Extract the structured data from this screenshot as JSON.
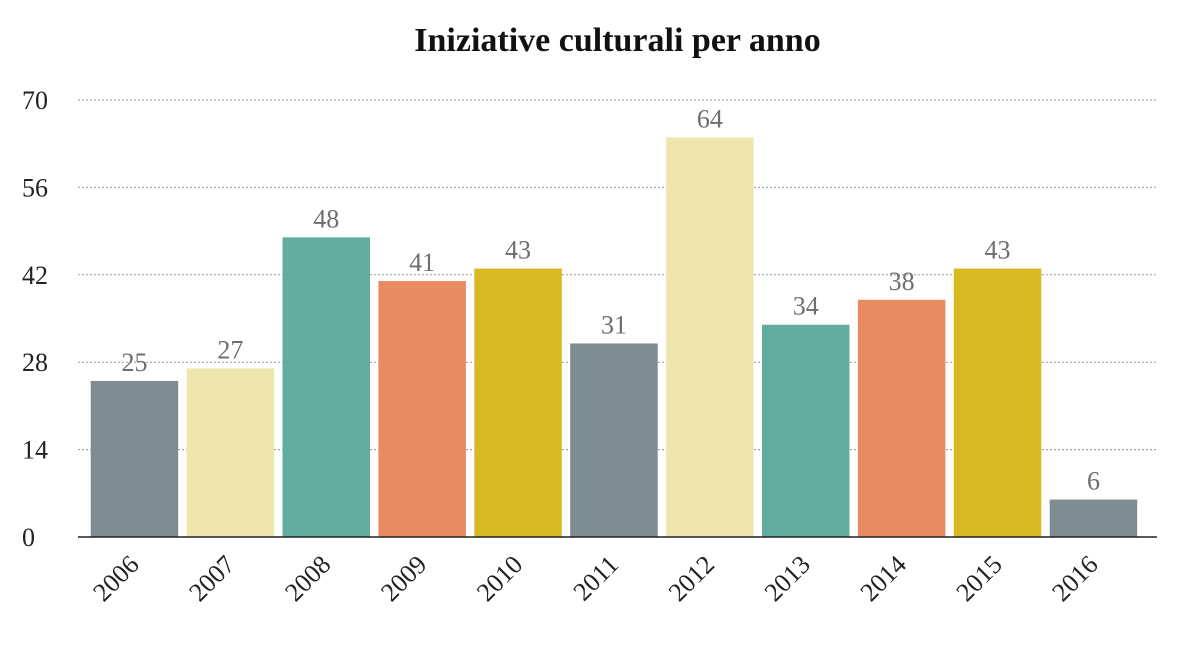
{
  "chart_data": {
    "type": "bar",
    "title": "Iniziative culturali per anno",
    "xlabel": "",
    "ylabel": "",
    "categories": [
      "2006",
      "2007",
      "2008",
      "2009",
      "2010",
      "2011",
      "2012",
      "2013",
      "2014",
      "2015",
      "2016"
    ],
    "values": [
      25,
      27,
      48,
      41,
      43,
      31,
      64,
      34,
      38,
      43,
      6
    ],
    "ylim": [
      0,
      70
    ],
    "yticks": [
      0,
      14,
      28,
      42,
      56,
      70
    ],
    "grid": true,
    "legend": "none",
    "bar_colors": [
      "#7f8c91",
      "#efe5ae",
      "#62ada0",
      "#e98b62",
      "#d8b923",
      "#7f8c91",
      "#efe5ae",
      "#62ada0",
      "#e98b62",
      "#d8b923",
      "#7f8c91"
    ],
    "gridline_color": "#9a9a9a",
    "axis_color": "#222222",
    "value_label_color": "#6e6e6e"
  }
}
